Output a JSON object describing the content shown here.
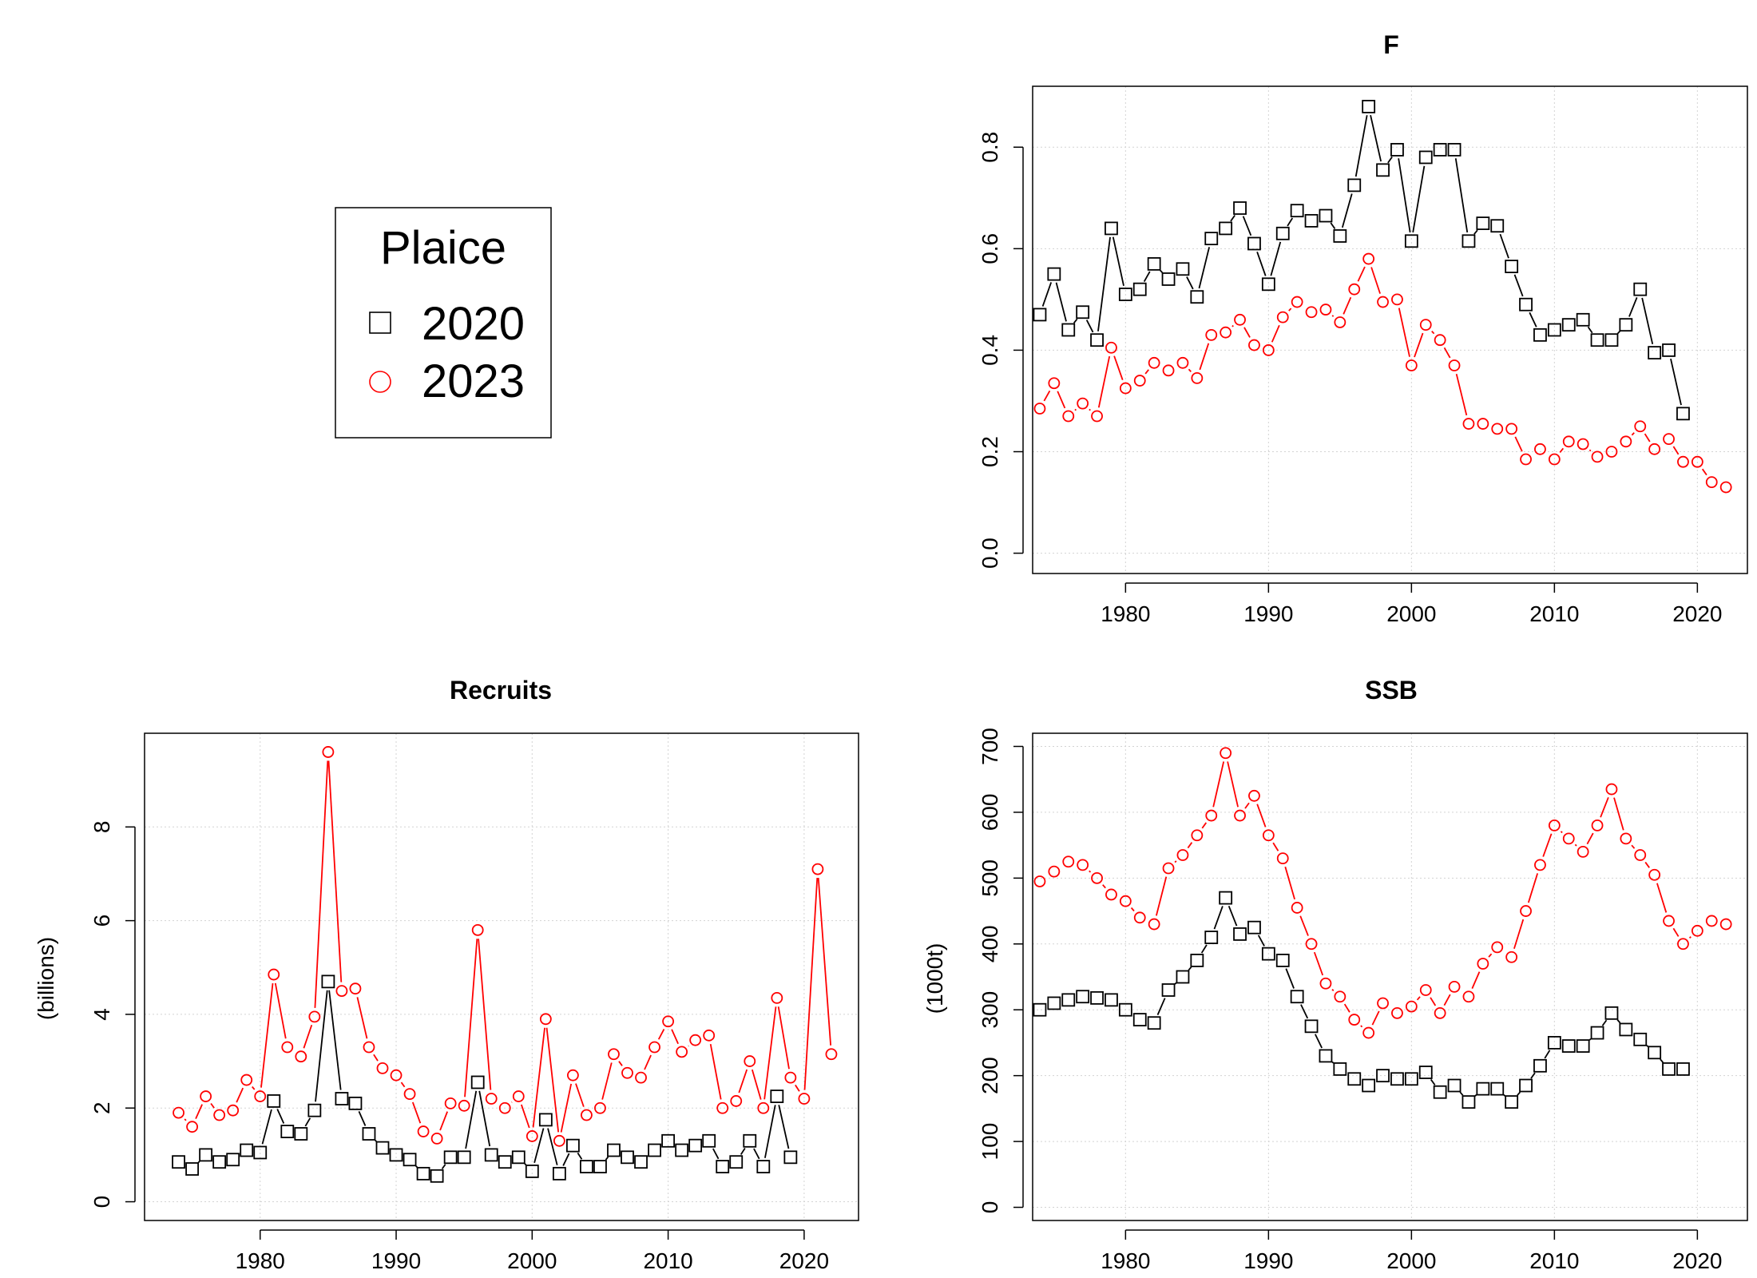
{
  "legend": {
    "title": "Plaice",
    "entries": [
      {
        "label": "2020",
        "color": "#000000",
        "shape": "square"
      },
      {
        "label": "2023",
        "color": "#ff0000",
        "shape": "circle"
      }
    ]
  },
  "chart_data": [
    {
      "id": "F",
      "type": "line",
      "title": "F",
      "xlabel": "",
      "ylabel": "",
      "xlim": [
        1973.5,
        2023.5
      ],
      "ylim": [
        -0.04,
        0.92
      ],
      "xticks": [
        1980,
        1990,
        2000,
        2010,
        2020
      ],
      "yticks": [
        0.0,
        0.2,
        0.4,
        0.6,
        0.8
      ],
      "ytick_labels": [
        "0.0",
        "0.2",
        "0.4",
        "0.6",
        "0.8"
      ],
      "grid": true,
      "series": [
        {
          "name": "2020",
          "color": "#000000",
          "marker": "square",
          "x": [
            1974,
            1975,
            1976,
            1977,
            1978,
            1979,
            1980,
            1981,
            1982,
            1983,
            1984,
            1985,
            1986,
            1987,
            1988,
            1989,
            1990,
            1991,
            1992,
            1993,
            1994,
            1995,
            1996,
            1997,
            1998,
            1999,
            2000,
            2001,
            2002,
            2003,
            2004,
            2005,
            2006,
            2007,
            2008,
            2009,
            2010,
            2011,
            2012,
            2013,
            2014,
            2015,
            2016,
            2017,
            2018,
            2019
          ],
          "y": [
            0.47,
            0.55,
            0.44,
            0.475,
            0.42,
            0.64,
            0.51,
            0.52,
            0.57,
            0.54,
            0.56,
            0.505,
            0.62,
            0.64,
            0.68,
            0.61,
            0.53,
            0.63,
            0.675,
            0.655,
            0.665,
            0.625,
            0.725,
            0.88,
            0.755,
            0.795,
            0.615,
            0.78,
            0.795,
            0.795,
            0.615,
            0.65,
            0.645,
            0.565,
            0.49,
            0.43,
            0.44,
            0.45,
            0.46,
            0.42,
            0.42,
            0.45,
            0.52,
            0.395,
            0.4,
            0.275
          ]
        },
        {
          "name": "2023",
          "color": "#ff0000",
          "marker": "circle",
          "x": [
            1974,
            1975,
            1976,
            1977,
            1978,
            1979,
            1980,
            1981,
            1982,
            1983,
            1984,
            1985,
            1986,
            1987,
            1988,
            1989,
            1990,
            1991,
            1992,
            1993,
            1994,
            1995,
            1996,
            1997,
            1998,
            1999,
            2000,
            2001,
            2002,
            2003,
            2004,
            2005,
            2006,
            2007,
            2008,
            2009,
            2010,
            2011,
            2012,
            2013,
            2014,
            2015,
            2016,
            2017,
            2018,
            2019,
            2020,
            2021,
            2022
          ],
          "y": [
            0.285,
            0.335,
            0.27,
            0.295,
            0.27,
            0.405,
            0.325,
            0.34,
            0.375,
            0.36,
            0.375,
            0.345,
            0.43,
            0.435,
            0.46,
            0.41,
            0.4,
            0.465,
            0.495,
            0.475,
            0.48,
            0.455,
            0.52,
            0.58,
            0.495,
            0.5,
            0.37,
            0.45,
            0.42,
            0.37,
            0.255,
            0.255,
            0.245,
            0.245,
            0.185,
            0.205,
            0.185,
            0.22,
            0.215,
            0.19,
            0.2,
            0.22,
            0.25,
            0.205,
            0.225,
            0.18,
            0.18,
            0.14,
            0.13
          ]
        }
      ]
    },
    {
      "id": "Recruits",
      "type": "line",
      "title": "Recruits",
      "xlabel": "",
      "ylabel": "(billions)",
      "xlim": [
        1971.5,
        2024.0
      ],
      "ylim": [
        -0.4,
        10.0
      ],
      "xticks": [
        1980,
        1990,
        2000,
        2010,
        2020
      ],
      "yticks": [
        0,
        2,
        4,
        6,
        8
      ],
      "ytick_labels": [
        "0",
        "2",
        "4",
        "6",
        "8"
      ],
      "grid": true,
      "series": [
        {
          "name": "2020",
          "color": "#000000",
          "marker": "square",
          "x": [
            1974,
            1975,
            1976,
            1977,
            1978,
            1979,
            1980,
            1981,
            1982,
            1983,
            1984,
            1985,
            1986,
            1987,
            1988,
            1989,
            1990,
            1991,
            1992,
            1993,
            1994,
            1995,
            1996,
            1997,
            1998,
            1999,
            2000,
            2001,
            2002,
            2003,
            2004,
            2005,
            2006,
            2007,
            2008,
            2009,
            2010,
            2011,
            2012,
            2013,
            2014,
            2015,
            2016,
            2017,
            2018,
            2019
          ],
          "y": [
            0.85,
            0.7,
            1.0,
            0.85,
            0.9,
            1.1,
            1.05,
            2.15,
            1.5,
            1.45,
            1.95,
            4.7,
            2.2,
            2.1,
            1.45,
            1.15,
            1.0,
            0.9,
            0.6,
            0.55,
            0.95,
            0.95,
            2.55,
            1.0,
            0.85,
            0.95,
            0.65,
            1.75,
            0.6,
            1.2,
            0.75,
            0.75,
            1.1,
            0.95,
            0.85,
            1.1,
            1.3,
            1.1,
            1.2,
            1.3,
            0.75,
            0.85,
            1.3,
            0.75,
            2.25,
            0.95
          ]
        },
        {
          "name": "2023",
          "color": "#ff0000",
          "marker": "circle",
          "x": [
            1974,
            1975,
            1976,
            1977,
            1978,
            1979,
            1980,
            1981,
            1982,
            1983,
            1984,
            1985,
            1986,
            1987,
            1988,
            1989,
            1990,
            1991,
            1992,
            1993,
            1994,
            1995,
            1996,
            1997,
            1998,
            1999,
            2000,
            2001,
            2002,
            2003,
            2004,
            2005,
            2006,
            2007,
            2008,
            2009,
            2010,
            2011,
            2012,
            2013,
            2014,
            2015,
            2016,
            2017,
            2018,
            2019,
            2020,
            2021,
            2022
          ],
          "y": [
            1.9,
            1.6,
            2.25,
            1.85,
            1.95,
            2.6,
            2.25,
            4.85,
            3.3,
            3.1,
            3.95,
            9.6,
            4.5,
            4.55,
            3.3,
            2.85,
            2.7,
            2.3,
            1.5,
            1.35,
            2.1,
            2.05,
            5.8,
            2.2,
            2.0,
            2.25,
            1.4,
            3.9,
            1.3,
            2.7,
            1.85,
            2.0,
            3.15,
            2.75,
            2.65,
            3.3,
            3.85,
            3.2,
            3.45,
            3.55,
            2.0,
            2.15,
            3.0,
            2.0,
            4.35,
            2.65,
            2.2,
            7.1,
            3.15
          ]
        }
      ]
    },
    {
      "id": "SSB",
      "type": "line",
      "title": "SSB",
      "xlabel": "",
      "ylabel": "(1000t)",
      "xlim": [
        1973.5,
        2023.5
      ],
      "ylim": [
        -20,
        720
      ],
      "xticks": [
        1980,
        1990,
        2000,
        2010,
        2020
      ],
      "yticks": [
        0,
        100,
        200,
        300,
        400,
        500,
        600,
        700
      ],
      "ytick_labels": [
        "0",
        "100",
        "200",
        "300",
        "400",
        "500",
        "600",
        "700"
      ],
      "grid": true,
      "series": [
        {
          "name": "2020",
          "color": "#000000",
          "marker": "square",
          "x": [
            1974,
            1975,
            1976,
            1977,
            1978,
            1979,
            1980,
            1981,
            1982,
            1983,
            1984,
            1985,
            1986,
            1987,
            1988,
            1989,
            1990,
            1991,
            1992,
            1993,
            1994,
            1995,
            1996,
            1997,
            1998,
            1999,
            2000,
            2001,
            2002,
            2003,
            2004,
            2005,
            2006,
            2007,
            2008,
            2009,
            2010,
            2011,
            2012,
            2013,
            2014,
            2015,
            2016,
            2017,
            2018,
            2019
          ],
          "y": [
            300,
            310,
            315,
            320,
            318,
            315,
            300,
            285,
            280,
            330,
            350,
            375,
            410,
            470,
            415,
            425,
            385,
            375,
            320,
            275,
            230,
            210,
            195,
            185,
            200,
            195,
            195,
            205,
            175,
            185,
            160,
            180,
            180,
            160,
            185,
            215,
            250,
            245,
            245,
            265,
            295,
            270,
            255,
            235,
            210,
            210
          ]
        },
        {
          "name": "2023",
          "color": "#ff0000",
          "marker": "circle",
          "x": [
            1974,
            1975,
            1976,
            1977,
            1978,
            1979,
            1980,
            1981,
            1982,
            1983,
            1984,
            1985,
            1986,
            1987,
            1988,
            1989,
            1990,
            1991,
            1992,
            1993,
            1994,
            1995,
            1996,
            1997,
            1998,
            1999,
            2000,
            2001,
            2002,
            2003,
            2004,
            2005,
            2006,
            2007,
            2008,
            2009,
            2010,
            2011,
            2012,
            2013,
            2014,
            2015,
            2016,
            2017,
            2018,
            2019,
            2020,
            2021,
            2022
          ],
          "y": [
            495,
            510,
            525,
            520,
            500,
            475,
            465,
            440,
            430,
            515,
            535,
            565,
            595,
            690,
            595,
            625,
            565,
            530,
            455,
            400,
            340,
            320,
            285,
            265,
            310,
            295,
            305,
            330,
            295,
            335,
            320,
            370,
            395,
            380,
            450,
            520,
            580,
            560,
            540,
            580,
            635,
            560,
            535,
            505,
            435,
            400,
            420,
            435,
            430
          ]
        }
      ]
    }
  ]
}
